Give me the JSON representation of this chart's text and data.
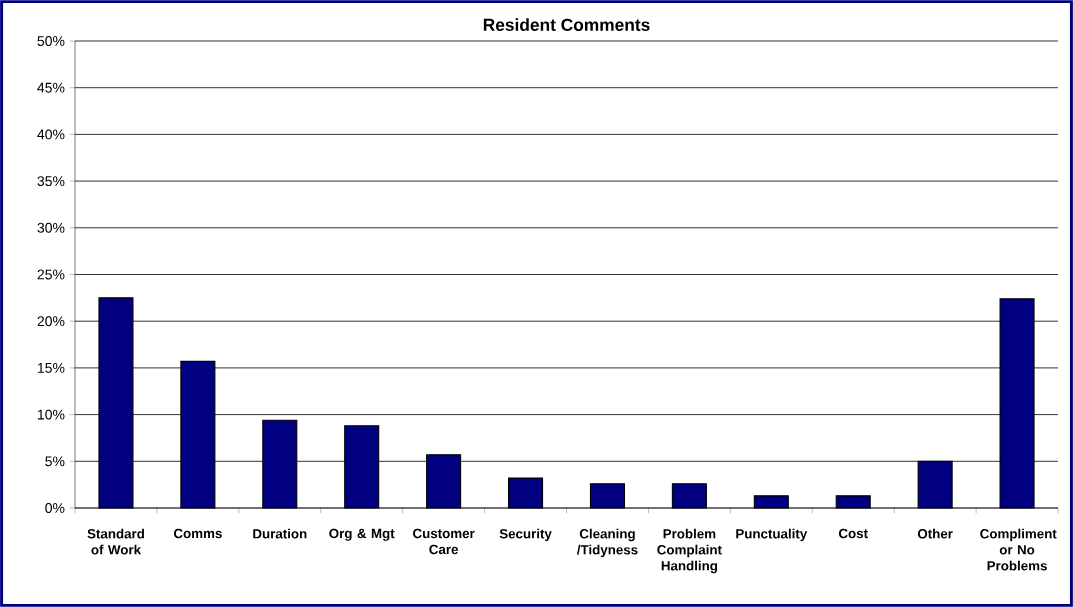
{
  "chart_data": {
    "type": "bar",
    "title": "Resident Comments",
    "categories": [
      "Standard of Work",
      "Comms",
      "Duration",
      "Org & Mgt",
      "Customer Care",
      "Security",
      "Cleaning /Tidyness",
      "Problem Complaint Handling",
      "Punctuality",
      "Cost",
      "Other",
      "Compliment or No Problems"
    ],
    "values": [
      22.5,
      15.7,
      9.4,
      8.8,
      5.7,
      3.2,
      2.6,
      2.6,
      1.3,
      1.3,
      5.0,
      22.4
    ],
    "color": "#000080",
    "ylim": [
      0,
      50
    ],
    "yticks": [
      {
        "value": 0,
        "label": "0%"
      },
      {
        "value": 5,
        "label": "5%"
      },
      {
        "value": 10,
        "label": "10%"
      },
      {
        "value": 15,
        "label": "15%"
      },
      {
        "value": 20,
        "label": "20%"
      },
      {
        "value": 25,
        "label": "25%"
      },
      {
        "value": 30,
        "label": "30%"
      },
      {
        "value": 35,
        "label": "35%"
      },
      {
        "value": 40,
        "label": "40%"
      },
      {
        "value": 45,
        "label": "45%"
      },
      {
        "value": 50,
        "label": "50%"
      }
    ],
    "grid": "y"
  }
}
